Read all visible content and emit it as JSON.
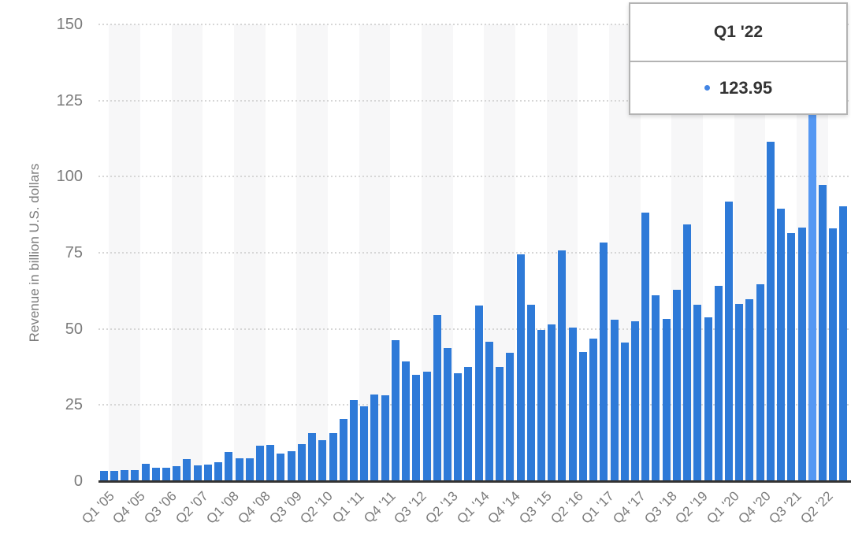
{
  "chart_data": {
    "type": "bar",
    "ylabel": "Revenue in billion U.S. dollars",
    "x": [
      "Q1 '05",
      "Q2 '05",
      "Q3 '05",
      "Q4 '05",
      "Q1 '06",
      "Q2 '06",
      "Q3 '06",
      "Q4 '06",
      "Q1 '07",
      "Q2 '07",
      "Q3 '07",
      "Q4 '07",
      "Q1 '08",
      "Q2 '08",
      "Q3 '08",
      "Q4 '08",
      "Q1 '09",
      "Q2 '09",
      "Q3 '09",
      "Q4 '09",
      "Q1 '10",
      "Q2 '10",
      "Q3 '10",
      "Q4 '10",
      "Q1 '11",
      "Q2 '11",
      "Q3 '11",
      "Q4 '11",
      "Q1 '12",
      "Q2 '12",
      "Q3 '12",
      "Q4 '12",
      "Q1 '13",
      "Q2 '13",
      "Q3 '13",
      "Q4 '13",
      "Q1 '14",
      "Q2 '14",
      "Q3 '14",
      "Q4 '14",
      "Q1 '15",
      "Q2 '15",
      "Q3 '15",
      "Q4 '15",
      "Q1 '16",
      "Q2 '16",
      "Q3 '16",
      "Q4 '16",
      "Q1 '17",
      "Q2 '17",
      "Q3 '17",
      "Q4 '17",
      "Q1 '18",
      "Q2 '18",
      "Q3 '18",
      "Q4 '18",
      "Q1 '19",
      "Q2 '19",
      "Q3 '19",
      "Q4 '19",
      "Q1 '20",
      "Q2 '20",
      "Q3 '20",
      "Q4 '20",
      "Q1 '21",
      "Q2 '21",
      "Q3 '21",
      "Q4 '21",
      "Q1 '22",
      "Q2 '22",
      "Q3 '22",
      "Q4 '22"
    ],
    "values": [
      3.49,
      3.24,
      3.52,
      3.68,
      5.75,
      4.36,
      4.37,
      4.84,
      7.12,
      5.26,
      5.41,
      6.22,
      9.6,
      7.51,
      7.46,
      11.52,
      11.88,
      9.08,
      9.73,
      12.21,
      15.68,
      13.5,
      15.7,
      20.34,
      26.74,
      24.67,
      28.57,
      28.27,
      46.33,
      39.19,
      35.02,
      35.97,
      54.51,
      43.6,
      35.32,
      37.47,
      57.59,
      45.65,
      37.43,
      42.12,
      74.6,
      58.01,
      49.61,
      51.5,
      75.87,
      50.56,
      42.36,
      46.85,
      78.35,
      52.9,
      45.41,
      52.58,
      88.29,
      61.14,
      53.27,
      62.9,
      84.31,
      58.02,
      53.81,
      64.04,
      91.82,
      58.31,
      59.69,
      64.7,
      111.44,
      89.58,
      81.43,
      83.36,
      123.95,
      97.28,
      82.96,
      90.15
    ],
    "yticks": [
      0,
      25,
      50,
      75,
      100,
      125,
      150
    ],
    "ylim": [
      0,
      150
    ],
    "x_tick_step": 3,
    "grid": "dotted-horizontal",
    "highlight_index": 68,
    "legend_position": "none"
  },
  "tooltip": {
    "title": "Q1 '22",
    "value": "123.95"
  },
  "colors": {
    "bar": "#2e7ad8",
    "bar_highlight": "#5598f3",
    "band": "#f7f7f8",
    "grid": "#d6d6d6",
    "axis_line": "#333333",
    "tick_text": "#7b7b7b",
    "tooltip_border": "#b3b3b3",
    "tooltip_text": "#333333",
    "tooltip_dot": "#4285e4"
  }
}
